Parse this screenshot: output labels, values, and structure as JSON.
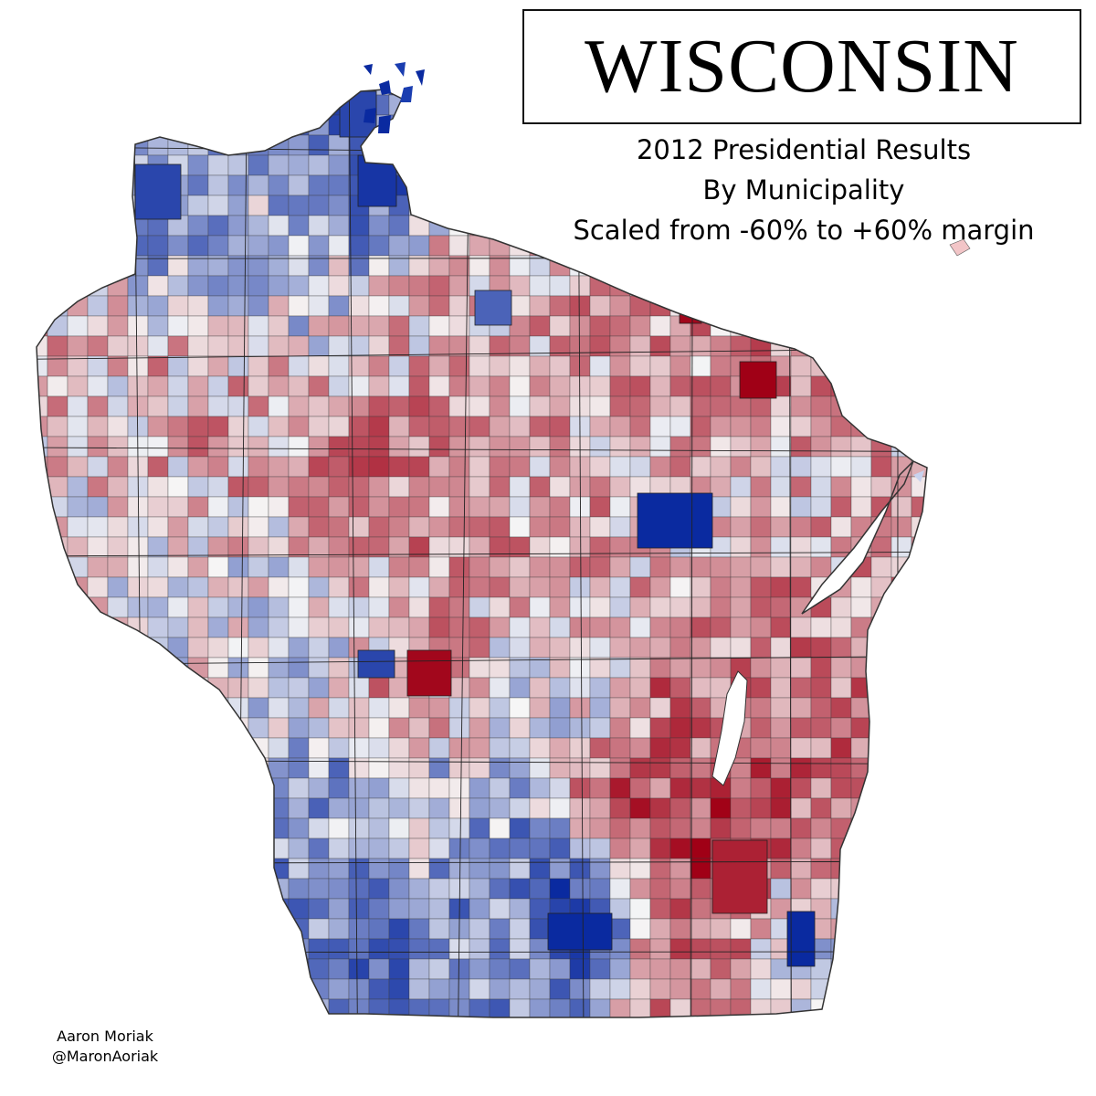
{
  "map": {
    "title": "WISCONSIN",
    "subtitle_lines": [
      "2012 Presidential Results",
      "By Municipality",
      "Scaled from -60% to +60% margin"
    ],
    "credit": {
      "author": "Aaron Moriak",
      "handle": "@MaronAoriak"
    },
    "color_scale": {
      "min_margin": -60,
      "max_margin": 60,
      "democratic_color": "#0a2aa0",
      "republican_color": "#a00016",
      "neutral_color": "#f6f6f6"
    }
  }
}
